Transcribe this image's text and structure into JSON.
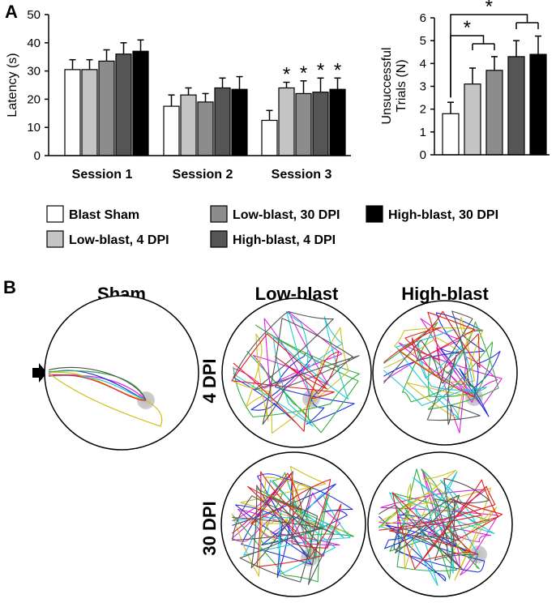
{
  "panel_a_label": "A",
  "panel_b_label": "B",
  "series_colors": [
    "#ffffff",
    "#c4c4c4",
    "#8c8c8c",
    "#555555",
    "#000000"
  ],
  "chart_data": [
    {
      "type": "bar",
      "title": "",
      "xlabel": "",
      "ylabel": "Latency (s)",
      "ylim": [
        0,
        50
      ],
      "yticks": [
        "0",
        "10",
        "20",
        "30",
        "40",
        "50"
      ],
      "categories": [
        "Session 1",
        "Session 2",
        "Session 3"
      ],
      "series": [
        {
          "name": "Blast Sham",
          "values": [
            30.5,
            17.5,
            12.5
          ],
          "errors": [
            3.5,
            4,
            3.5
          ]
        },
        {
          "name": "Low-blast, 4 DPI",
          "values": [
            30.5,
            21.5,
            24
          ],
          "errors": [
            3.5,
            2.5,
            2
          ]
        },
        {
          "name": "Low-blast, 30 DPI",
          "values": [
            33.5,
            19,
            22
          ],
          "errors": [
            4,
            3,
            4.5
          ]
        },
        {
          "name": "High-blast, 4 DPI",
          "values": [
            36,
            24,
            22.5
          ],
          "errors": [
            4,
            3.5,
            5
          ]
        },
        {
          "name": "High-blast, 30 DPI",
          "values": [
            37,
            23.5,
            23.5
          ],
          "errors": [
            4,
            4.5,
            4
          ]
        }
      ],
      "significance": [
        {
          "category": "Session 3",
          "series": [
            1,
            2,
            3,
            4
          ],
          "marker": "*"
        }
      ]
    },
    {
      "type": "bar",
      "title": "",
      "xlabel": "",
      "ylabel": "Unsuccessful Trials (N)",
      "ylabel_lines": [
        "Unsuccessful",
        "Trials (N)"
      ],
      "ylim": [
        0,
        6
      ],
      "yticks": [
        "0",
        "1",
        "2",
        "3",
        "4",
        "5",
        "6"
      ],
      "categories": [
        ""
      ],
      "series": [
        {
          "name": "Blast Sham",
          "values": [
            1.8
          ],
          "errors": [
            0.5
          ]
        },
        {
          "name": "Low-blast, 4 DPI",
          "values": [
            3.1
          ],
          "errors": [
            0.7
          ]
        },
        {
          "name": "Low-blast, 30 DPI",
          "values": [
            3.7
          ],
          "errors": [
            0.6
          ]
        },
        {
          "name": "High-blast, 4 DPI",
          "values": [
            4.3
          ],
          "errors": [
            0.7
          ]
        },
        {
          "name": "High-blast, 30 DPI",
          "values": [
            4.4
          ],
          "errors": [
            0.8
          ]
        }
      ],
      "significance": [
        {
          "from": 0,
          "to": [
            1,
            2
          ],
          "marker": "*"
        },
        {
          "from": 0,
          "to": [
            3,
            4
          ],
          "marker": "*"
        }
      ]
    }
  ],
  "legend": [
    "Blast Sham",
    "Low-blast, 4 DPI",
    "Low-blast, 30 DPI",
    "High-blast, 4 DPI",
    "High-blast, 30 DPI"
  ],
  "panel_b": {
    "headings": [
      "Sham",
      "Low-blast",
      "High-blast"
    ],
    "row_labels": [
      "4 DPI",
      "30 DPI"
    ],
    "track_colors": [
      "#e020e0",
      "#2030e0",
      "#30b040",
      "#d0c020",
      "#20c8d8",
      "#e02020",
      "#555555"
    ]
  }
}
